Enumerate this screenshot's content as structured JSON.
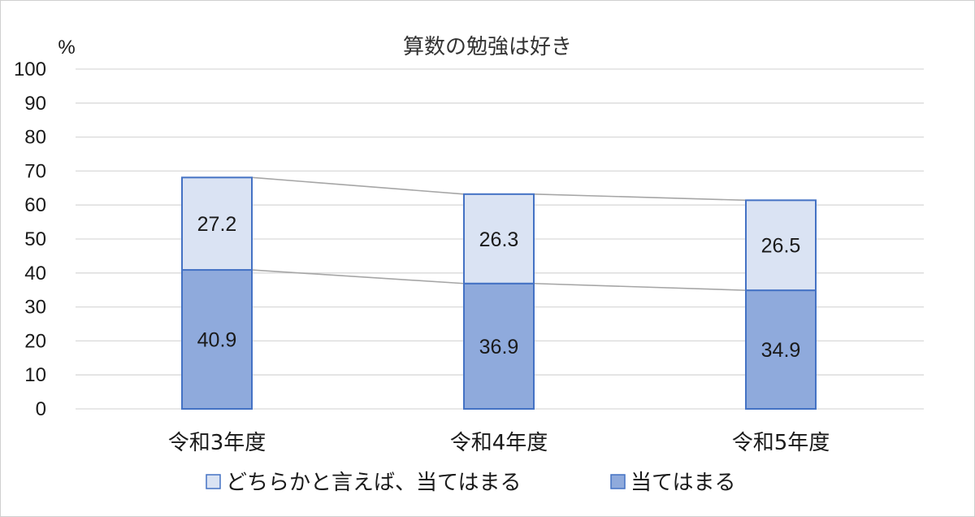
{
  "chart_data": {
    "type": "bar",
    "stacked": true,
    "title": "算数の勉強は好き",
    "ylabel": "%",
    "xlabel": "",
    "categories": [
      "令和3年度",
      "令和4年度",
      "令和5年度"
    ],
    "series": [
      {
        "name": "当てはまる",
        "values": [
          40.9,
          36.9,
          34.9
        ],
        "color": "#8faadc"
      },
      {
        "name": "どちらかと言えば、当てはまる",
        "values": [
          27.2,
          26.3,
          26.5
        ],
        "color": "#dae3f3"
      }
    ],
    "ylim": [
      0,
      100
    ],
    "yticks": [
      "0",
      "10",
      "20",
      "30",
      "40",
      "50",
      "60",
      "70",
      "80",
      "90",
      "100"
    ],
    "grid": true,
    "series_lines": true,
    "legend_position": "bottom",
    "legend_order": [
      "どちらかと言えば、当てはまる",
      "当てはまる"
    ],
    "bar_border_color": "#4472c4",
    "grid_color": "#d9d9d9",
    "series_line_color": "#a6a6a6"
  }
}
